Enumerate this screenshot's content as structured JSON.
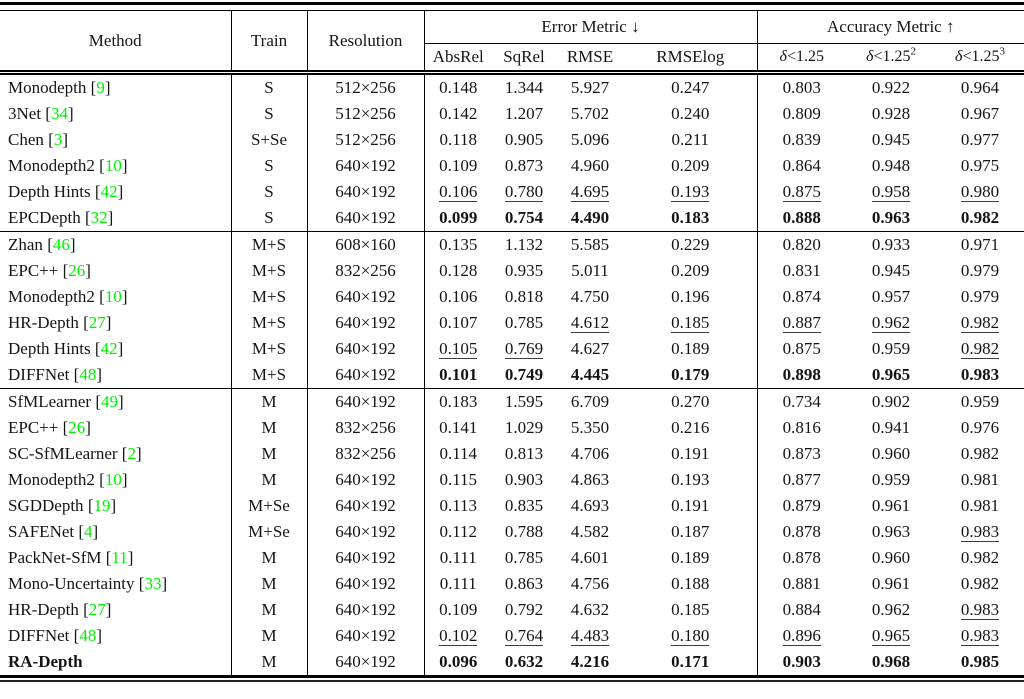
{
  "colors": {
    "citation_green": "#00ee00",
    "text": "#141414"
  },
  "table": {
    "header": {
      "method": "Method",
      "train": "Train",
      "resolution": "Resolution",
      "error_group": "Error Metric ↓",
      "accuracy_group": "Accuracy Metric ↑",
      "error_cols": [
        "AbsRel",
        "SqRel",
        "RMSE",
        "RMSElog"
      ],
      "delta_prefix": "δ",
      "delta_cond": "<1.25",
      "delta_sups": [
        "",
        "2",
        "3"
      ]
    },
    "groups": [
      {
        "rows": [
          {
            "method": "Monodepth",
            "cite": "9",
            "bold_method": false,
            "train": "S",
            "resolution": "512×256",
            "values": [
              "0.148",
              "1.344",
              "5.927",
              "0.247",
              "0.803",
              "0.922",
              "0.964"
            ],
            "styles": [
              "n",
              "n",
              "n",
              "n",
              "n",
              "n",
              "n"
            ]
          },
          {
            "method": "3Net",
            "cite": "34",
            "bold_method": false,
            "train": "S",
            "resolution": "512×256",
            "values": [
              "0.142",
              "1.207",
              "5.702",
              "0.240",
              "0.809",
              "0.928",
              "0.967"
            ],
            "styles": [
              "n",
              "n",
              "n",
              "n",
              "n",
              "n",
              "n"
            ]
          },
          {
            "method": "Chen",
            "cite": "3",
            "bold_method": false,
            "train": "S+Se",
            "resolution": "512×256",
            "values": [
              "0.118",
              "0.905",
              "5.096",
              "0.211",
              "0.839",
              "0.945",
              "0.977"
            ],
            "styles": [
              "n",
              "n",
              "n",
              "n",
              "n",
              "n",
              "n"
            ]
          },
          {
            "method": "Monodepth2",
            "cite": "10",
            "bold_method": false,
            "train": "S",
            "resolution": "640×192",
            "values": [
              "0.109",
              "0.873",
              "4.960",
              "0.209",
              "0.864",
              "0.948",
              "0.975"
            ],
            "styles": [
              "n",
              "n",
              "n",
              "n",
              "n",
              "n",
              "n"
            ]
          },
          {
            "method": "Depth Hints",
            "cite": "42",
            "bold_method": false,
            "train": "S",
            "resolution": "640×192",
            "values": [
              "0.106",
              "0.780",
              "4.695",
              "0.193",
              "0.875",
              "0.958",
              "0.980"
            ],
            "styles": [
              "u",
              "u",
              "u",
              "u",
              "u",
              "u",
              "u"
            ]
          },
          {
            "method": "EPCDepth",
            "cite": "32",
            "bold_method": false,
            "train": "S",
            "resolution": "640×192",
            "values": [
              "0.099",
              "0.754",
              "4.490",
              "0.183",
              "0.888",
              "0.963",
              "0.982"
            ],
            "styles": [
              "b",
              "b",
              "b",
              "b",
              "b",
              "b",
              "b"
            ]
          }
        ]
      },
      {
        "rows": [
          {
            "method": "Zhan",
            "cite": "46",
            "bold_method": false,
            "train": "M+S",
            "resolution": "608×160",
            "values": [
              "0.135",
              "1.132",
              "5.585",
              "0.229",
              "0.820",
              "0.933",
              "0.971"
            ],
            "styles": [
              "n",
              "n",
              "n",
              "n",
              "n",
              "n",
              "n"
            ]
          },
          {
            "method": "EPC++",
            "cite": "26",
            "bold_method": false,
            "train": "M+S",
            "resolution": "832×256",
            "values": [
              "0.128",
              "0.935",
              "5.011",
              "0.209",
              "0.831",
              "0.945",
              "0.979"
            ],
            "styles": [
              "n",
              "n",
              "n",
              "n",
              "n",
              "n",
              "n"
            ]
          },
          {
            "method": "Monodepth2",
            "cite": "10",
            "bold_method": false,
            "train": "M+S",
            "resolution": "640×192",
            "values": [
              "0.106",
              "0.818",
              "4.750",
              "0.196",
              "0.874",
              "0.957",
              "0.979"
            ],
            "styles": [
              "n",
              "n",
              "n",
              "n",
              "n",
              "n",
              "n"
            ]
          },
          {
            "method": "HR-Depth",
            "cite": "27",
            "bold_method": false,
            "train": "M+S",
            "resolution": "640×192",
            "values": [
              "0.107",
              "0.785",
              "4.612",
              "0.185",
              "0.887",
              "0.962",
              "0.982"
            ],
            "styles": [
              "n",
              "n",
              "u",
              "u",
              "u",
              "u",
              "u"
            ]
          },
          {
            "method": "Depth Hints",
            "cite": "42",
            "bold_method": false,
            "train": "M+S",
            "resolution": "640×192",
            "values": [
              "0.105",
              "0.769",
              "4.627",
              "0.189",
              "0.875",
              "0.959",
              "0.982"
            ],
            "styles": [
              "u",
              "u",
              "n",
              "n",
              "n",
              "n",
              "u"
            ]
          },
          {
            "method": "DIFFNet",
            "cite": "48",
            "bold_method": false,
            "train": "M+S",
            "resolution": "640×192",
            "values": [
              "0.101",
              "0.749",
              "4.445",
              "0.179",
              "0.898",
              "0.965",
              "0.983"
            ],
            "styles": [
              "b",
              "b",
              "b",
              "b",
              "b",
              "b",
              "b"
            ]
          }
        ]
      },
      {
        "rows": [
          {
            "method": "SfMLearner",
            "cite": "49",
            "bold_method": false,
            "train": "M",
            "resolution": "640×192",
            "values": [
              "0.183",
              "1.595",
              "6.709",
              "0.270",
              "0.734",
              "0.902",
              "0.959"
            ],
            "styles": [
              "n",
              "n",
              "n",
              "n",
              "n",
              "n",
              "n"
            ]
          },
          {
            "method": "EPC++",
            "cite": "26",
            "bold_method": false,
            "train": "M",
            "resolution": "832×256",
            "values": [
              "0.141",
              "1.029",
              "5.350",
              "0.216",
              "0.816",
              "0.941",
              "0.976"
            ],
            "styles": [
              "n",
              "n",
              "n",
              "n",
              "n",
              "n",
              "n"
            ]
          },
          {
            "method": "SC-SfMLearner",
            "cite": "2",
            "bold_method": false,
            "train": "M",
            "resolution": "832×256",
            "values": [
              "0.114",
              "0.813",
              "4.706",
              "0.191",
              "0.873",
              "0.960",
              "0.982"
            ],
            "styles": [
              "n",
              "n",
              "n",
              "n",
              "n",
              "n",
              "n"
            ]
          },
          {
            "method": "Monodepth2",
            "cite": "10",
            "bold_method": false,
            "train": "M",
            "resolution": "640×192",
            "values": [
              "0.115",
              "0.903",
              "4.863",
              "0.193",
              "0.877",
              "0.959",
              "0.981"
            ],
            "styles": [
              "n",
              "n",
              "n",
              "n",
              "n",
              "n",
              "n"
            ]
          },
          {
            "method": "SGDDepth",
            "cite": "19",
            "bold_method": false,
            "train": "M+Se",
            "resolution": "640×192",
            "values": [
              "0.113",
              "0.835",
              "4.693",
              "0.191",
              "0.879",
              "0.961",
              "0.981"
            ],
            "styles": [
              "n",
              "n",
              "n",
              "n",
              "n",
              "n",
              "n"
            ]
          },
          {
            "method": "SAFENet",
            "cite": "4",
            "bold_method": false,
            "train": "M+Se",
            "resolution": "640×192",
            "values": [
              "0.112",
              "0.788",
              "4.582",
              "0.187",
              "0.878",
              "0.963",
              "0.983"
            ],
            "styles": [
              "n",
              "n",
              "n",
              "n",
              "n",
              "n",
              "u"
            ]
          },
          {
            "method": "PackNet-SfM",
            "cite": "11",
            "bold_method": false,
            "train": "M",
            "resolution": "640×192",
            "values": [
              "0.111",
              "0.785",
              "4.601",
              "0.189",
              "0.878",
              "0.960",
              "0.982"
            ],
            "styles": [
              "n",
              "n",
              "n",
              "n",
              "n",
              "n",
              "n"
            ]
          },
          {
            "method": "Mono-Uncertainty",
            "cite": "33",
            "bold_method": false,
            "train": "M",
            "resolution": "640×192",
            "values": [
              "0.111",
              "0.863",
              "4.756",
              "0.188",
              "0.881",
              "0.961",
              "0.982"
            ],
            "styles": [
              "n",
              "n",
              "n",
              "n",
              "n",
              "n",
              "n"
            ]
          },
          {
            "method": "HR-Depth",
            "cite": "27",
            "bold_method": false,
            "train": "M",
            "resolution": "640×192",
            "values": [
              "0.109",
              "0.792",
              "4.632",
              "0.185",
              "0.884",
              "0.962",
              "0.983"
            ],
            "styles": [
              "n",
              "n",
              "n",
              "n",
              "n",
              "n",
              "u"
            ]
          },
          {
            "method": "DIFFNet",
            "cite": "48",
            "bold_method": false,
            "train": "M",
            "resolution": "640×192",
            "values": [
              "0.102",
              "0.764",
              "4.483",
              "0.180",
              "0.896",
              "0.965",
              "0.983"
            ],
            "styles": [
              "u",
              "u",
              "u",
              "u",
              "u",
              "u",
              "u"
            ]
          },
          {
            "method": "RA-Depth",
            "cite": "",
            "bold_method": true,
            "train": "M",
            "resolution": "640×192",
            "values": [
              "0.096",
              "0.632",
              "4.216",
              "0.171",
              "0.903",
              "0.968",
              "0.985"
            ],
            "styles": [
              "b",
              "b",
              "b",
              "b",
              "b",
              "b",
              "b"
            ]
          }
        ]
      }
    ]
  }
}
